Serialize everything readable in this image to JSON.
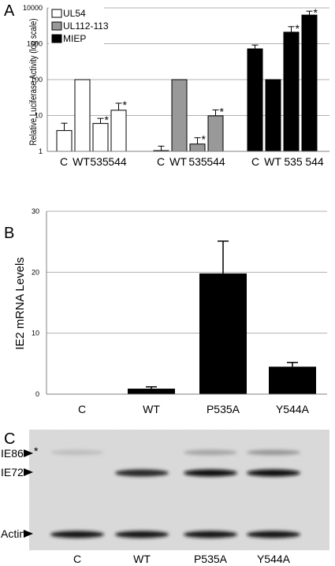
{
  "chart_data": [
    {
      "panel": "A",
      "type": "bar",
      "ylabel": "Relative Luciferase Activity (log scale)",
      "yscale": "log",
      "ylim": [
        1,
        10000
      ],
      "yticks": [
        "1",
        "10",
        "100",
        "1000",
        "10000"
      ],
      "grid": true,
      "legend_position": "top-left",
      "categories": [
        "C",
        "WT",
        "535",
        "544"
      ],
      "series": [
        {
          "name": "UL54",
          "color": "#ffffff",
          "values": [
            3.8,
            100,
            6.0,
            14.0
          ],
          "error": [
            2.3,
            0,
            2.3,
            8.0
          ],
          "significant": [
            false,
            false,
            true,
            true
          ]
        },
        {
          "name": "UL112-113",
          "color": "#999999",
          "values": [
            1.05,
            100,
            1.6,
            9.8
          ],
          "error": [
            0.35,
            0,
            0.8,
            4.5
          ],
          "significant": [
            false,
            false,
            true,
            true
          ]
        },
        {
          "name": "MIEP",
          "color": "#000000",
          "values": [
            720,
            100,
            2100,
            6300
          ],
          "error": [
            200,
            0,
            900,
            1800
          ],
          "significant": [
            false,
            false,
            true,
            true
          ]
        }
      ],
      "star": "*"
    },
    {
      "panel": "B",
      "type": "bar",
      "ylabel": "IE2 mRNA Levels",
      "ylim": [
        0,
        30
      ],
      "yticks": [
        "0",
        "10",
        "20",
        "30"
      ],
      "grid": true,
      "categories": [
        "C",
        "WT",
        "P535A",
        "Y544A"
      ],
      "values": [
        0,
        0.9,
        19.8,
        4.5
      ],
      "error": [
        0,
        0.3,
        5.3,
        0.7
      ],
      "color": "#000000"
    }
  ],
  "panel_c": {
    "letter": "C",
    "star": "*",
    "band_labels": [
      "IE86",
      "IE72",
      "Actin"
    ],
    "lanes": [
      "C",
      "WT",
      "P535A",
      "Y544A"
    ],
    "bands": {
      "IE86": [
        0.25,
        0.15,
        0.35,
        0.4
      ],
      "IE72": [
        0.0,
        0.85,
        0.95,
        0.95
      ],
      "Actin": [
        0.9,
        0.9,
        0.9,
        0.9
      ]
    }
  },
  "ui": {
    "panel_a_letter": "A",
    "panel_b_letter": "B"
  }
}
